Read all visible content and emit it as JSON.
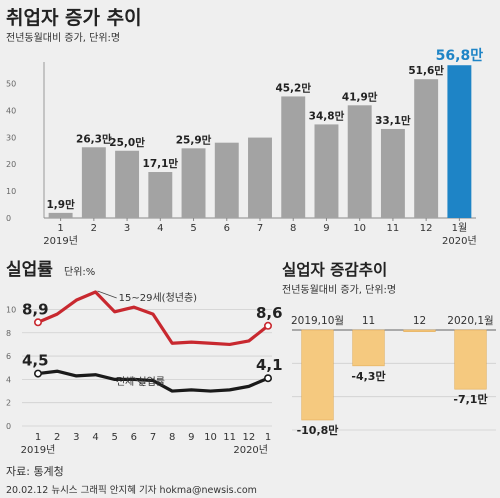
{
  "chart_data": [
    {
      "type": "bar",
      "title": "취업자 증가 추이",
      "subtitle": "전년동월대비 증가, 단위:명",
      "categories": [
        "1",
        "2",
        "3",
        "4",
        "5",
        "6",
        "7",
        "8",
        "9",
        "10",
        "11",
        "12",
        "1월"
      ],
      "year_labels": [
        "2019년",
        "2020년"
      ],
      "values": [
        1.9,
        26.3,
        25.0,
        17.1,
        25.9,
        28.0,
        29.9,
        45.2,
        34.8,
        41.9,
        33.1,
        51.6,
        56.8
      ],
      "data_labels": [
        "1,9만",
        "26,3만",
        "25,0만",
        "17,1만",
        "25,9만",
        "",
        "",
        "45,2만",
        "34,8만",
        "41,9만",
        "33,1만",
        "51,6만",
        "56,8만"
      ],
      "yticks": [
        0,
        10,
        20,
        30,
        40,
        50
      ],
      "ylim": [
        0,
        58
      ],
      "colors": {
        "bar": "#a3a3a3",
        "highlight": "#1e84c6",
        "highlight_label": "#1e84c6"
      },
      "grid": false
    },
    {
      "type": "line",
      "title": "실업률",
      "subtitle": "단위:%",
      "categories": [
        "1",
        "2",
        "3",
        "4",
        "5",
        "6",
        "7",
        "8",
        "9",
        "10",
        "11",
        "12",
        "1"
      ],
      "year_labels": [
        "2019년",
        "2020년"
      ],
      "yticks": [
        0,
        2,
        4,
        6,
        8,
        10
      ],
      "ylim": [
        0,
        11.5
      ],
      "series": [
        {
          "name": "15~29세(청년층)",
          "color": "#c8282f",
          "values": [
            8.9,
            9.6,
            10.8,
            11.5,
            9.8,
            10.2,
            9.6,
            7.1,
            7.2,
            7.1,
            7.0,
            7.3,
            8.6
          ],
          "start_label": "8,9",
          "end_label": "8,6"
        },
        {
          "name": "전체 실업률",
          "color": "#1a1a1a",
          "values": [
            4.5,
            4.7,
            4.3,
            4.4,
            4.0,
            4.0,
            3.9,
            3.0,
            3.1,
            3.0,
            3.1,
            3.4,
            4.1
          ],
          "start_label": "4,5",
          "end_label": "4,1"
        }
      ],
      "grid": true
    },
    {
      "type": "bar",
      "title": "실업자 증감추이",
      "subtitle": "전년동월대비 증가, 단위:명",
      "categories": [
        "2019,10월",
        "11",
        "12",
        "2020,1월"
      ],
      "values": [
        -10.8,
        -4.3,
        -0.2,
        -7.1
      ],
      "data_labels": [
        "-10,8만",
        "-4,3만",
        "",
        "-7,1만"
      ],
      "colors": {
        "bar": "#f5c97f",
        "edge": "#e3ae5a"
      },
      "grid": true
    }
  ],
  "footer": {
    "source": "자료: 통계청",
    "credit": "20.02.12   뉴시스 그래픽 안지혜 기자 hokma@newsis.com"
  }
}
